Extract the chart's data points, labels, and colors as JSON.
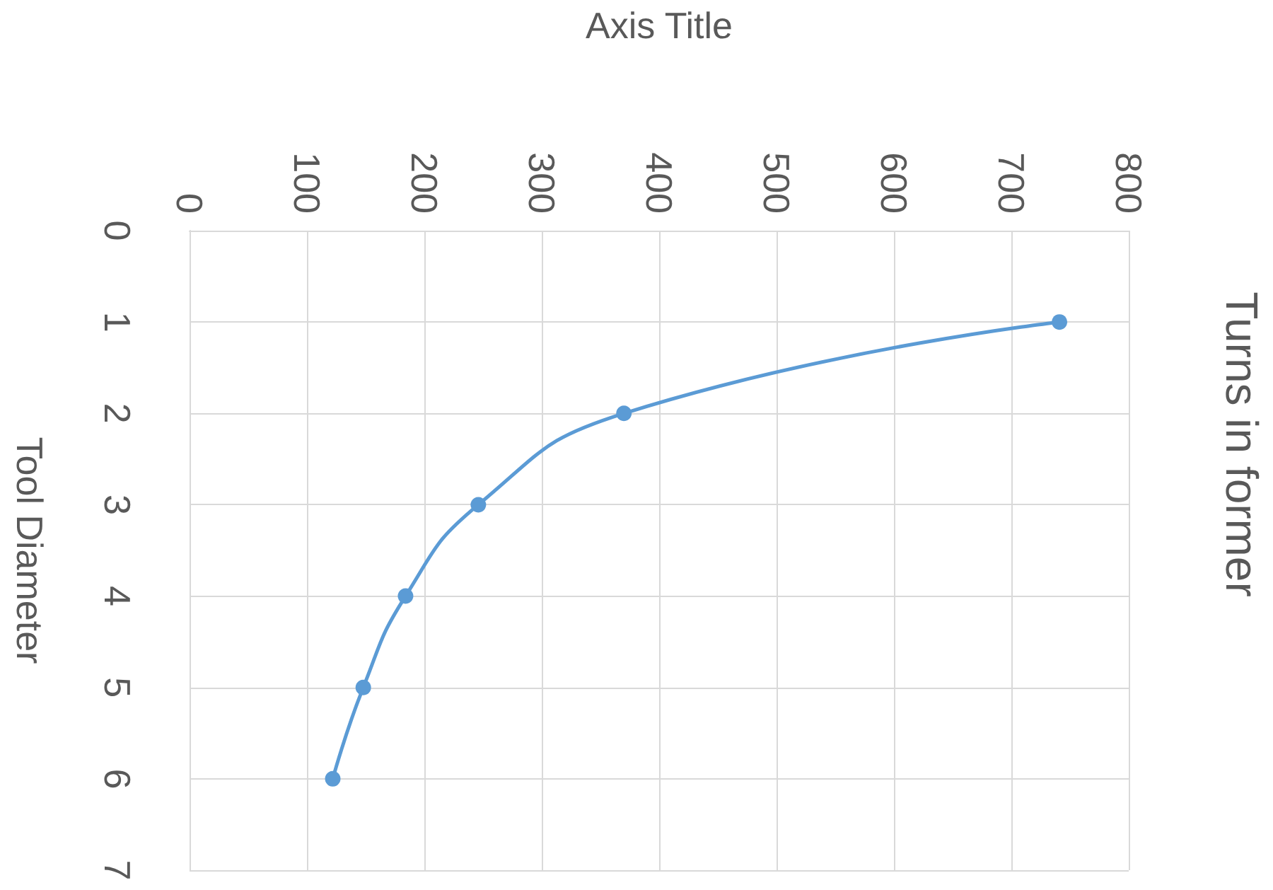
{
  "chart_data": {
    "type": "line",
    "title": "Turns in former",
    "xlabel": "Axis Title",
    "ylabel": "Tool Diameter",
    "x": [
      741,
      370,
      246,
      184,
      148,
      122
    ],
    "series": [
      {
        "color": "#5b9bd5",
        "values": [
          1,
          2,
          3,
          4,
          5,
          6
        ]
      }
    ],
    "xlim": [
      0,
      800
    ],
    "xticks": [
      0,
      100,
      200,
      300,
      400,
      500,
      600,
      700,
      800
    ],
    "ylim": [
      7,
      0
    ],
    "yticks": [
      0,
      1,
      2,
      3,
      4,
      5,
      6,
      7
    ],
    "grid": true,
    "marker": "circle",
    "line_style": "solid"
  }
}
